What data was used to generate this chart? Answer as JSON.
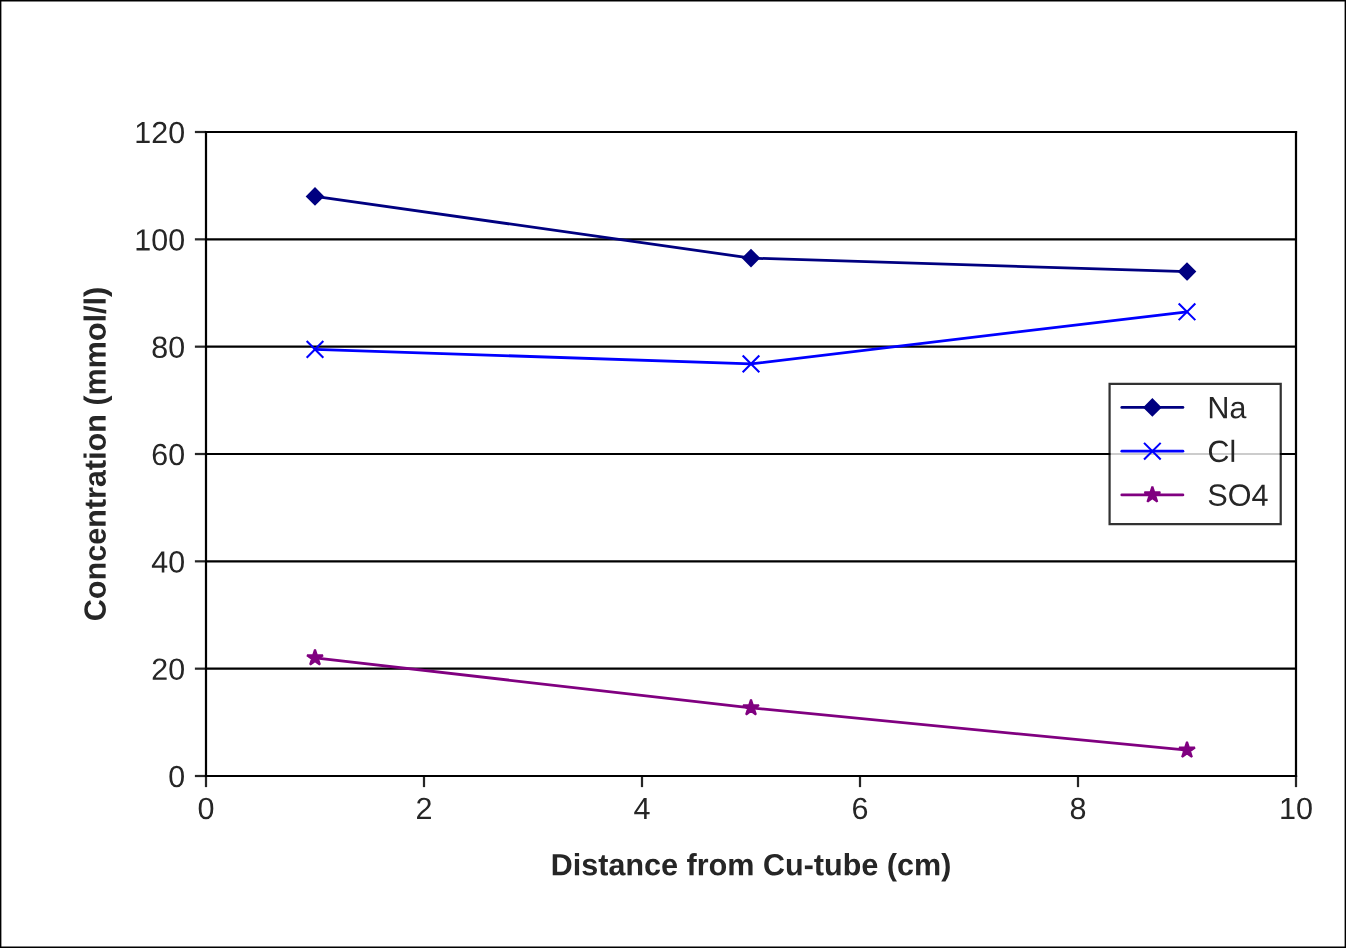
{
  "chart_data": {
    "type": "line",
    "xlabel": "Distance from Cu-tube (cm)",
    "ylabel": "Concentration (mmol/l)",
    "x": [
      1,
      5,
      9
    ],
    "series": [
      {
        "name": "Na",
        "color": "#000080",
        "marker": "diamond",
        "values": [
          108,
          96.5,
          94
        ]
      },
      {
        "name": "Cl",
        "color": "#0000ff",
        "marker": "cross",
        "values": [
          79.5,
          76.8,
          86.5
        ]
      },
      {
        "name": "SO4",
        "color": "#800080",
        "marker": "star",
        "values": [
          22,
          12.7,
          4.8
        ]
      }
    ],
    "xlim": [
      0,
      10
    ],
    "xticks": [
      0,
      2,
      4,
      6,
      8,
      10
    ],
    "ylim": [
      0,
      120
    ],
    "yticks": [
      0,
      20,
      40,
      60,
      80,
      100,
      120
    ],
    "grid": "y",
    "legend": "right",
    "line_style": "solid"
  }
}
